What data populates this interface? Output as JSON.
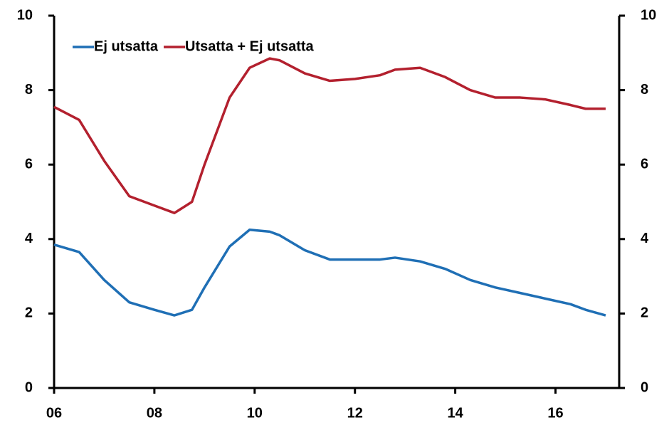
{
  "chart_data": {
    "type": "line",
    "x": [
      2006,
      2006.5,
      2007,
      2007.5,
      2008,
      2008.4,
      2008.75,
      2009,
      2009.5,
      2009.9,
      2010.3,
      2010.5,
      2011,
      2011.5,
      2012,
      2012.5,
      2012.8,
      2013.3,
      2013.8,
      2014.3,
      2014.8,
      2015.3,
      2015.8,
      2016.3,
      2016.6,
      2017
    ],
    "series": [
      {
        "name": "Ej utsatta",
        "color": "#1f6fb5",
        "values": [
          3.85,
          3.65,
          2.9,
          2.3,
          2.1,
          1.95,
          2.1,
          2.7,
          3.8,
          4.25,
          4.2,
          4.1,
          3.7,
          3.45,
          3.45,
          3.45,
          3.5,
          3.4,
          3.2,
          2.9,
          2.7,
          2.55,
          2.4,
          2.25,
          2.1,
          1.95
        ]
      },
      {
        "name": "Utsatta + Ej utsatta",
        "color": "#b3202e",
        "values": [
          7.55,
          7.2,
          6.1,
          5.15,
          4.9,
          4.7,
          5.0,
          6.0,
          7.8,
          8.6,
          8.85,
          8.8,
          8.45,
          8.25,
          8.3,
          8.4,
          8.55,
          8.6,
          8.35,
          8.0,
          7.8,
          7.8,
          7.75,
          7.6,
          7.5,
          7.5
        ]
      }
    ],
    "xlim": [
      2006,
      2017.27
    ],
    "xticks": [
      {
        "value": 2006,
        "label": "06"
      },
      {
        "value": 2008,
        "label": "08"
      },
      {
        "value": 2010,
        "label": "10"
      },
      {
        "value": 2012,
        "label": "12"
      },
      {
        "value": 2014,
        "label": "14"
      },
      {
        "value": 2016,
        "label": "16"
      }
    ],
    "ylim": [
      0,
      10
    ],
    "yticks": [
      0,
      2,
      4,
      6,
      8,
      10
    ],
    "y2lim": [
      0,
      10
    ],
    "y2ticks": [
      0,
      2,
      4,
      6,
      8,
      10
    ],
    "grid": false,
    "legend": "upper left"
  }
}
